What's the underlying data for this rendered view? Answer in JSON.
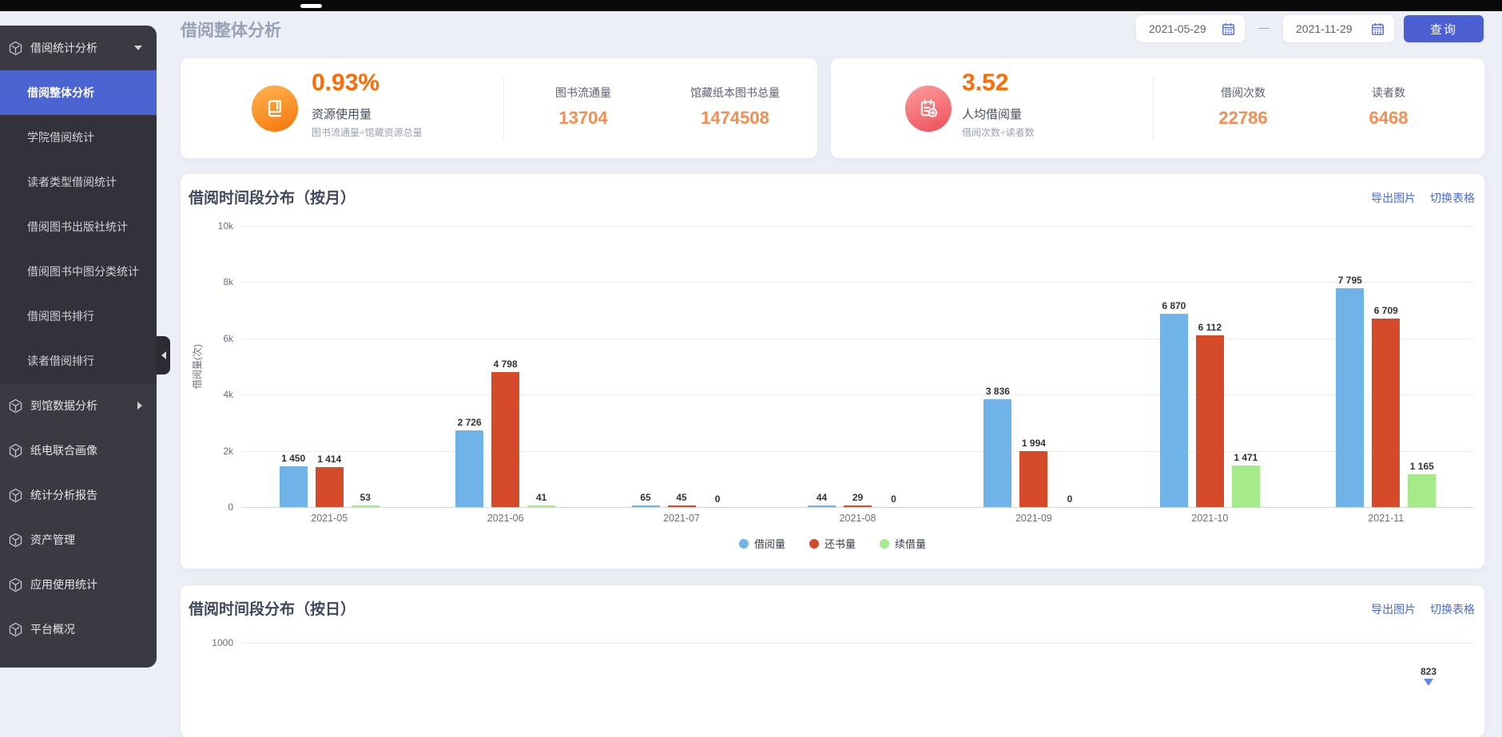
{
  "header": {
    "title": "借阅整体分析",
    "date_start": "2021-05-29",
    "date_end": "2021-11-29",
    "separator": "—",
    "query_button": "查询"
  },
  "sidebar": {
    "items": [
      {
        "label": "借阅统计分析",
        "icon": "cube-icon",
        "expanded": true,
        "children": [
          {
            "label": "借阅整体分析",
            "selected": true
          },
          {
            "label": "学院借阅统计"
          },
          {
            "label": "读者类型借阅统计"
          },
          {
            "label": "借阅图书出版社统计"
          },
          {
            "label": "借阅图书中图分类统计"
          },
          {
            "label": "借阅图书排行"
          },
          {
            "label": "读者借阅排行"
          }
        ]
      },
      {
        "label": "到馆数据分析",
        "icon": "cube-icon",
        "collapsed": true
      },
      {
        "label": "纸电联合画像",
        "icon": "cube-icon"
      },
      {
        "label": "统计分析报告",
        "icon": "cube-icon"
      },
      {
        "label": "资产管理",
        "icon": "cube-icon"
      },
      {
        "label": "应用使用统计",
        "icon": "cube-icon"
      },
      {
        "label": "平台概况",
        "icon": "cube-icon"
      }
    ]
  },
  "stat_cards": [
    {
      "icon": "book-icon",
      "big_value": "0.93%",
      "label": "资源使用量",
      "formula": "图书流通量÷馆藏资源总量",
      "stats": [
        {
          "label": "图书流通量",
          "value": "13704"
        },
        {
          "label": "馆藏纸本图书总量",
          "value": "1474508"
        }
      ]
    },
    {
      "icon": "notepad-icon",
      "big_value": "3.52",
      "label": "人均借阅量",
      "formula": "借阅次数÷读者数",
      "stats": [
        {
          "label": "借阅次数",
          "value": "22786"
        },
        {
          "label": "读者数",
          "value": "6468"
        }
      ]
    }
  ],
  "monthly_chart": {
    "title": "借阅时间段分布（按月）",
    "actions": [
      "导出图片",
      "切换表格"
    ],
    "chart_data": {
      "type": "bar",
      "categories": [
        "2021-05",
        "2021-06",
        "2021-07",
        "2021-08",
        "2021-09",
        "2021-10",
        "2021-11"
      ],
      "series": [
        {
          "name": "借阅量",
          "color": "#6fb3e8",
          "values": [
            1450,
            2726,
            65,
            44,
            3836,
            6870,
            7795
          ]
        },
        {
          "name": "还书量",
          "color": "#d54a28",
          "values": [
            1414,
            4798,
            45,
            29,
            1994,
            6112,
            6709
          ]
        },
        {
          "name": "续借量",
          "color": "#a5ea8b",
          "values": [
            53,
            41,
            0,
            0,
            0,
            1471,
            1165
          ]
        }
      ],
      "ylabel": "借阅量(次)",
      "yticks": [
        {
          "label": "0",
          "value": 0
        },
        {
          "label": "2k",
          "value": 2000
        },
        {
          "label": "4k",
          "value": 4000
        },
        {
          "label": "6k",
          "value": 6000
        },
        {
          "label": "8k",
          "value": 8000
        },
        {
          "label": "10k",
          "value": 10000
        }
      ],
      "ymax": 10000,
      "legend_position": "bottom-center",
      "grid": true,
      "value_label_thousands_separator": " "
    }
  },
  "daily_chart": {
    "title": "借阅时间段分布（按日）",
    "actions": [
      "导出图片",
      "切换表格"
    ],
    "chart_data": {
      "type": "bar",
      "note": "chart mostly cut off at screen bottom",
      "visible_ytick": {
        "label": "1000",
        "value": 1000
      },
      "visible_point": {
        "label": "823",
        "value": 823
      }
    }
  },
  "colors": {
    "accent_blue": "#4b5fd2",
    "link_blue": "#4a6bd8",
    "selected_menu": "#4b64d1",
    "orange_big": "#ff6b00",
    "orange_value": "#f68c4f",
    "series_borrow": "#6fb3e8",
    "series_return": "#d54a28",
    "series_renew": "#a5ea8b",
    "daily_marker": "#5b87f0"
  }
}
